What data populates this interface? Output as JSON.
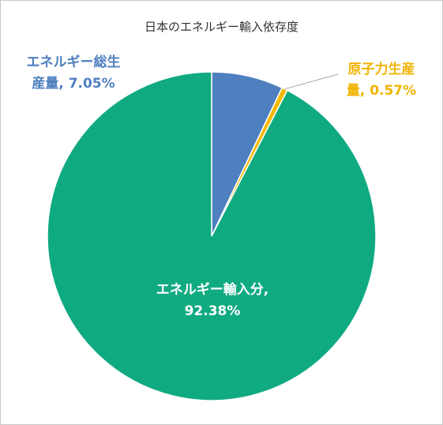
{
  "chart_data": {
    "type": "pie",
    "title": "日本のエネルギー輸入依存度",
    "values": [
      7.05,
      0.57,
      92.38
    ],
    "value_labels": [
      "エネルギー総生産量, 7.05%",
      "原子力生産量, 0.57%",
      "エネルギー輸入分, 92.38%"
    ],
    "colors": [
      "#4e7fbf",
      "#f5b800",
      "#10aa80"
    ],
    "label_colors": [
      "#4e7fbf",
      "#f0b400",
      "#ffffff"
    ]
  }
}
